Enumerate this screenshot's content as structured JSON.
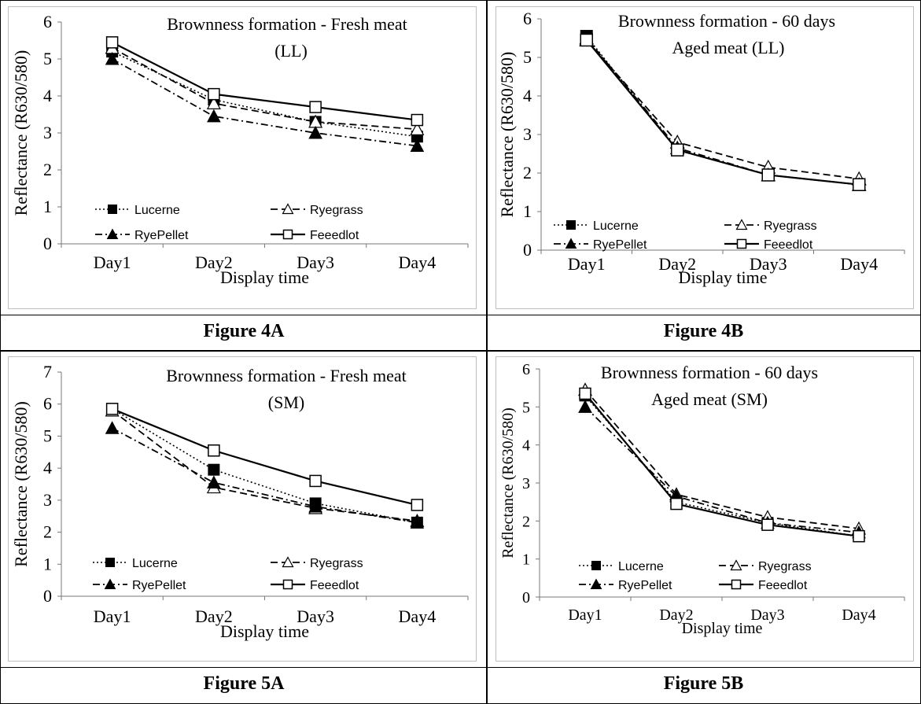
{
  "captions": [
    "Figure 4A",
    "Figure 4B",
    "Figure 5A",
    "Figure 5B"
  ],
  "legend_symbols": {
    "Lucerne": "filled-square",
    "Ryegrass": "open-triangle",
    "RyePellet": "filled-triangle",
    "Feeedlot": "open-square"
  },
  "chart_data": [
    {
      "type": "line",
      "title": "Brownness formation - Fresh meat",
      "subtitle": "(LL)",
      "xlabel": "Display time",
      "ylabel": "Reflectance (R630/580)",
      "categories": [
        "Day1",
        "Day2",
        "Day3",
        "Day4"
      ],
      "ylim": [
        0,
        6
      ],
      "yticks": [
        0,
        1,
        2,
        3,
        4,
        5,
        6
      ],
      "grid": false,
      "legend": "bottom",
      "series": [
        {
          "name": "Lucerne",
          "values": [
            5.2,
            3.9,
            3.3,
            2.9
          ]
        },
        {
          "name": "Ryegrass",
          "values": [
            5.3,
            3.8,
            3.3,
            3.1
          ]
        },
        {
          "name": "RyePellet",
          "values": [
            5.0,
            3.45,
            3.0,
            2.65
          ]
        },
        {
          "name": "Feeedlot",
          "values": [
            5.45,
            4.05,
            3.7,
            3.35
          ]
        }
      ]
    },
    {
      "type": "line",
      "title": "Brownness formation - 60 days",
      "subtitle": "Aged meat (LL)",
      "xlabel": "Display time",
      "ylabel": "Reflectance (R630/580)",
      "categories": [
        "Day1",
        "Day2",
        "Day3",
        "Day4"
      ],
      "ylim": [
        0,
        6
      ],
      "yticks": [
        0,
        1,
        2,
        3,
        4,
        5,
        6
      ],
      "grid": false,
      "legend": "bottom",
      "series": [
        {
          "name": "Lucerne",
          "values": [
            5.55,
            2.6,
            1.95,
            1.7
          ]
        },
        {
          "name": "Ryegrass",
          "values": [
            5.45,
            2.8,
            2.15,
            1.85
          ]
        },
        {
          "name": "RyePellet",
          "values": [
            5.5,
            2.65,
            1.95,
            1.7
          ]
        },
        {
          "name": "Feeedlot",
          "values": [
            5.45,
            2.6,
            1.95,
            1.7
          ]
        }
      ]
    },
    {
      "type": "line",
      "title": "Brownness formation - Fresh meat",
      "subtitle": "(SM)",
      "xlabel": "Display time",
      "ylabel": "Reflectance (R630/580)",
      "categories": [
        "Day1",
        "Day2",
        "Day3",
        "Day4"
      ],
      "ylim": [
        0,
        7
      ],
      "yticks": [
        0,
        1,
        2,
        3,
        4,
        5,
        6,
        7
      ],
      "grid": false,
      "legend": "bottom",
      "series": [
        {
          "name": "Lucerne",
          "values": [
            5.85,
            3.95,
            2.9,
            2.3
          ]
        },
        {
          "name": "Ryegrass",
          "values": [
            5.8,
            3.4,
            2.75,
            2.35
          ]
        },
        {
          "name": "RyePellet",
          "values": [
            5.25,
            3.55,
            2.8,
            2.3
          ]
        },
        {
          "name": "Feeedlot",
          "values": [
            5.85,
            4.55,
            3.6,
            2.85
          ]
        }
      ]
    },
    {
      "type": "line",
      "title": "Brownness formation - 60 days",
      "subtitle": "Aged meat (SM)",
      "xlabel": "Display time",
      "ylabel": "Reflectance (R630/580)",
      "categories": [
        "Day1",
        "Day2",
        "Day3",
        "Day4"
      ],
      "ylim": [
        0,
        6
      ],
      "yticks": [
        0,
        1,
        2,
        3,
        4,
        5,
        6
      ],
      "grid": false,
      "legend": "bottom",
      "series": [
        {
          "name": "Lucerne",
          "values": [
            5.3,
            2.5,
            1.95,
            1.6
          ]
        },
        {
          "name": "Ryegrass",
          "values": [
            5.45,
            2.7,
            2.1,
            1.8
          ]
        },
        {
          "name": "RyePellet",
          "values": [
            5.0,
            2.65,
            1.95,
            1.7
          ]
        },
        {
          "name": "Feeedlot",
          "values": [
            5.35,
            2.45,
            1.9,
            1.6
          ]
        }
      ]
    }
  ]
}
